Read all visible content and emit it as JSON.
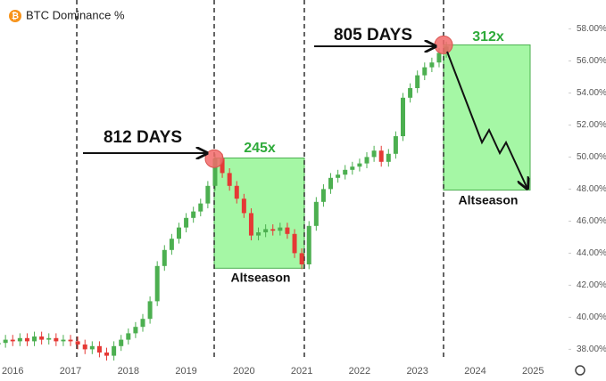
{
  "chart_data": {
    "type": "candlestick",
    "title": "BTC Dominance %",
    "title_icon": "₿",
    "x": [
      2015.75,
      2015.875,
      2016.0,
      2016.125,
      2016.25,
      2016.375,
      2016.5,
      2016.625,
      2016.75,
      2016.875,
      2017.0,
      2017.125,
      2017.25,
      2017.375,
      2017.5,
      2017.625,
      2017.75,
      2017.875,
      2018.0,
      2018.125,
      2018.25,
      2018.375,
      2018.5,
      2018.625,
      2018.75,
      2018.875,
      2019.0,
      2019.125,
      2019.25,
      2019.375,
      2019.5,
      2019.625,
      2019.75,
      2019.875,
      2020.0,
      2020.125,
      2020.25,
      2020.375,
      2020.5,
      2020.625,
      2020.75,
      2020.875,
      2021.0,
      2021.125,
      2021.25,
      2021.375,
      2021.5,
      2021.625,
      2021.75,
      2021.875,
      2022.0,
      2022.125,
      2022.25,
      2022.375,
      2022.5,
      2022.625,
      2022.75,
      2022.875,
      2023.0,
      2023.125,
      2023.25,
      2023.375,
      2023.5
    ],
    "open": [
      38.3,
      38.4,
      38.6,
      38.5,
      38.7,
      38.5,
      38.8,
      38.6,
      38.7,
      38.5,
      38.6,
      38.5,
      38.3,
      38.0,
      38.2,
      37.8,
      37.6,
      38.2,
      38.6,
      39.0,
      39.4,
      39.9,
      41.0,
      43.2,
      44.2,
      44.9,
      45.6,
      46.2,
      46.6,
      47.1,
      48.2,
      49.9,
      49.0,
      48.2,
      47.4,
      46.5,
      45.1,
      45.3,
      45.5,
      45.4,
      45.6,
      45.2,
      44.0,
      43.3,
      45.7,
      47.2,
      48.0,
      48.7,
      48.9,
      49.2,
      49.4,
      49.6,
      50.0,
      50.4,
      49.7,
      50.2,
      51.3,
      53.7,
      54.3,
      55.1,
      55.6,
      55.9,
      56.5
    ],
    "high": [
      38.7,
      38.9,
      38.9,
      39.0,
      39.0,
      39.1,
      39.1,
      39.0,
      39.0,
      38.9,
      38.9,
      38.8,
      38.6,
      38.5,
      38.5,
      38.1,
      38.5,
      38.9,
      39.3,
      39.7,
      40.2,
      41.3,
      43.5,
      44.5,
      45.2,
      45.9,
      46.5,
      46.9,
      47.4,
      48.5,
      50.2,
      50.2,
      49.3,
      48.5,
      47.7,
      46.8,
      45.6,
      45.8,
      45.8,
      45.9,
      45.9,
      45.5,
      44.3,
      46.0,
      47.5,
      48.3,
      49.0,
      49.2,
      49.5,
      49.7,
      49.9,
      50.3,
      50.7,
      50.7,
      50.5,
      51.6,
      54.0,
      54.6,
      55.4,
      55.9,
      56.2,
      56.8,
      57.2
    ],
    "low": [
      38.0,
      38.1,
      38.2,
      38.2,
      38.2,
      38.2,
      38.3,
      38.3,
      38.2,
      38.2,
      38.2,
      38.0,
      37.7,
      37.7,
      37.5,
      37.3,
      37.3,
      37.9,
      38.3,
      38.7,
      39.1,
      39.6,
      40.7,
      42.9,
      43.9,
      44.6,
      45.3,
      45.9,
      46.3,
      46.8,
      47.9,
      48.7,
      47.9,
      47.1,
      46.2,
      44.8,
      44.8,
      45.0,
      45.1,
      45.1,
      44.9,
      43.7,
      43.0,
      43.0,
      45.4,
      46.9,
      47.7,
      48.4,
      48.6,
      48.9,
      49.1,
      49.3,
      49.7,
      49.4,
      49.4,
      49.9,
      51.0,
      53.4,
      54.0,
      54.8,
      55.3,
      55.6,
      56.2
    ],
    "close": [
      38.4,
      38.6,
      38.5,
      38.7,
      38.5,
      38.8,
      38.6,
      38.7,
      38.5,
      38.6,
      38.5,
      38.3,
      38.0,
      38.2,
      37.8,
      37.6,
      38.2,
      38.6,
      39.0,
      39.4,
      39.9,
      41.0,
      43.2,
      44.2,
      44.9,
      45.6,
      46.2,
      46.6,
      47.1,
      48.2,
      49.9,
      49.0,
      48.2,
      47.4,
      46.5,
      45.1,
      45.3,
      45.5,
      45.4,
      45.6,
      45.2,
      44.0,
      43.3,
      45.7,
      47.2,
      48.0,
      48.7,
      48.9,
      49.2,
      49.4,
      49.6,
      50.0,
      50.4,
      49.7,
      50.2,
      51.3,
      53.7,
      54.3,
      55.1,
      55.6,
      55.9,
      56.5,
      56.9
    ],
    "up_color": "#4caf50",
    "down_color": "#e53935",
    "xlim": [
      2015.78,
      2025.66
    ],
    "xticks": [
      2016,
      2017,
      2018,
      2019,
      2020,
      2021,
      2022,
      2023,
      2024,
      2025
    ],
    "ylim": [
      37.3,
      59.8
    ],
    "yticks": [
      {
        "value": 38,
        "label": "38.00%"
      },
      {
        "value": 40,
        "label": "40.00%"
      },
      {
        "value": 42,
        "label": "42.00%"
      },
      {
        "value": 44,
        "label": "44.00%"
      },
      {
        "value": 46,
        "label": "46.00%"
      },
      {
        "value": 48,
        "label": "48.00%"
      },
      {
        "value": 50,
        "label": "50.00%"
      },
      {
        "value": 52,
        "label": "52.00%"
      },
      {
        "value": 54,
        "label": "54.00%"
      },
      {
        "value": 56,
        "label": "56.00%"
      },
      {
        "value": 58,
        "label": "58.00%"
      }
    ],
    "event_lines": [
      2017.108,
      2019.485,
      2021.044,
      2023.452
    ],
    "boxes": [
      {
        "x": [
          2019.485,
          2021.044
        ],
        "y": [
          43.06,
          49.94
        ]
      },
      {
        "x": [
          2023.452,
          2024.95
        ],
        "y": [
          47.94,
          57.0
        ]
      }
    ],
    "peaks": [
      {
        "x": 2019.485,
        "y": 49.9
      },
      {
        "x": 2023.452,
        "y": 57.0
      }
    ],
    "annotations": [
      "812 DAYS",
      "805 DAYS",
      "245x",
      "312x",
      "Altseason",
      "Altseason"
    ]
  }
}
